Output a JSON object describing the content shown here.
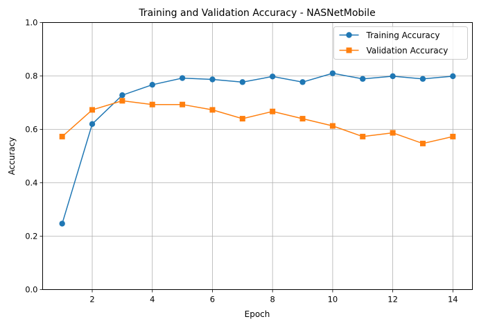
{
  "chart_data": {
    "type": "line",
    "title": "Training and Validation Accuracy - NASNetMobile",
    "xlabel": "Epoch",
    "ylabel": "Accuracy",
    "x": [
      1,
      2,
      3,
      4,
      5,
      6,
      7,
      8,
      9,
      10,
      11,
      12,
      13,
      14
    ],
    "xlim": [
      0.35,
      14.65
    ],
    "ylim": [
      0,
      1
    ],
    "xticks": [
      2,
      4,
      6,
      8,
      10,
      12,
      14
    ],
    "yticks": [
      0.0,
      0.2,
      0.4,
      0.6,
      0.8,
      1.0
    ],
    "xtick_labels": [
      "2",
      "4",
      "6",
      "8",
      "10",
      "12",
      "14"
    ],
    "ytick_labels": [
      "0.0",
      "0.2",
      "0.4",
      "0.6",
      "0.8",
      "1.0"
    ],
    "grid": true,
    "legend_position": "top-right",
    "series": [
      {
        "name": "Training Accuracy",
        "color": "#1f77b4",
        "marker": "circle",
        "values": [
          0.247,
          0.62,
          0.728,
          0.767,
          0.792,
          0.787,
          0.777,
          0.798,
          0.777,
          0.81,
          0.789,
          0.799,
          0.789,
          0.799
        ]
      },
      {
        "name": "Validation Accuracy",
        "color": "#ff7f0e",
        "marker": "square",
        "values": [
          0.573,
          0.673,
          0.707,
          0.693,
          0.693,
          0.673,
          0.64,
          0.667,
          0.64,
          0.613,
          0.573,
          0.587,
          0.547,
          0.573
        ]
      }
    ]
  }
}
